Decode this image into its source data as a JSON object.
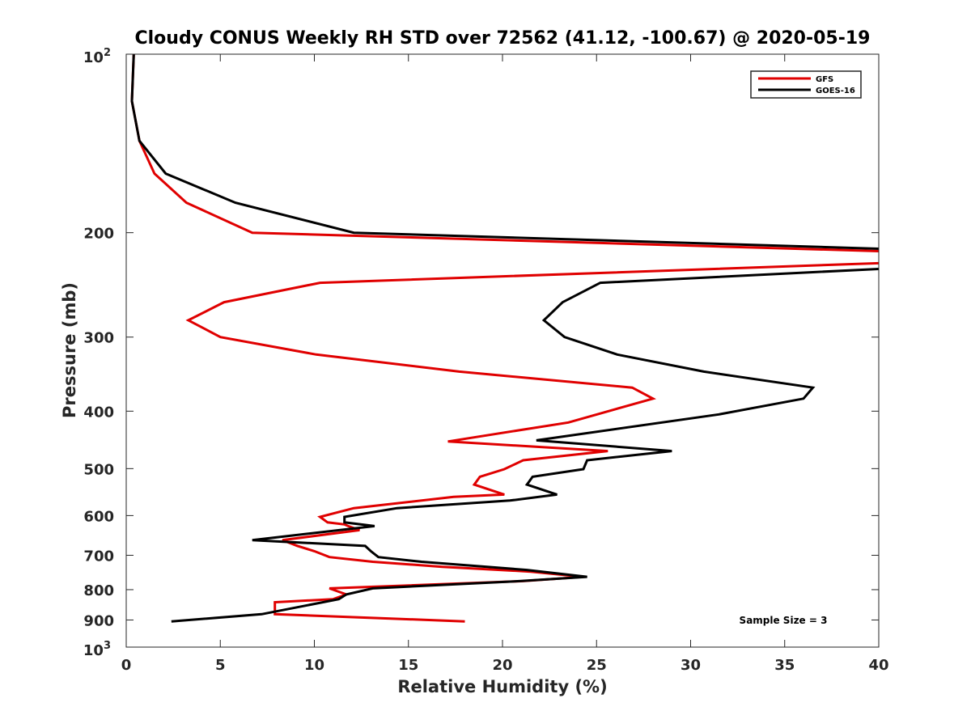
{
  "chart_data": {
    "type": "line",
    "title": "Cloudy CONUS Weekly RH STD over 72562 (41.12, -100.67) @ 2020-05-19",
    "xlabel": "Relative Humidity (%)",
    "ylabel": "Pressure (mb)",
    "xlim": [
      0,
      40
    ],
    "ylim": [
      100,
      1000
    ],
    "yscale": "log",
    "y_reversed": true,
    "grid": false,
    "legend_position": "top-right",
    "x_ticks": [
      {
        "value": 0,
        "label": "0"
      },
      {
        "value": 5,
        "label": "5"
      },
      {
        "value": 10,
        "label": "10"
      },
      {
        "value": 15,
        "label": "15"
      },
      {
        "value": 20,
        "label": "20"
      },
      {
        "value": 25,
        "label": "25"
      },
      {
        "value": 30,
        "label": "30"
      },
      {
        "value": 35,
        "label": "35"
      },
      {
        "value": 40,
        "label": "40"
      }
    ],
    "y_ticks": [
      {
        "value": 200,
        "label": "200"
      },
      {
        "value": 300,
        "label": "300"
      },
      {
        "value": 400,
        "label": "400"
      },
      {
        "value": 500,
        "label": "500"
      },
      {
        "value": 600,
        "label": "600"
      },
      {
        "value": 700,
        "label": "700"
      },
      {
        "value": 800,
        "label": "800"
      },
      {
        "value": 900,
        "label": "900"
      }
    ],
    "y_edge_labels": [
      {
        "value": 100,
        "base": "10",
        "exp": "2"
      },
      {
        "value": 1000,
        "base": "10",
        "exp": "3"
      }
    ],
    "annotation": "Sample Size = 3",
    "series": [
      {
        "name": "GFS",
        "color": "#e00000",
        "points": [
          [
            0.4,
            100
          ],
          [
            0.3,
            120
          ],
          [
            0.7,
            140
          ],
          [
            1.5,
            159
          ],
          [
            3.2,
            178
          ],
          [
            6.7,
            200
          ],
          [
            40.3,
            215
          ],
          [
            40.3,
            225
          ],
          [
            10.3,
            243
          ],
          [
            5.2,
            262
          ],
          [
            3.3,
            281
          ],
          [
            5.0,
            300
          ],
          [
            10.1,
            321
          ],
          [
            17.7,
            343
          ],
          [
            26.9,
            365
          ],
          [
            28.0,
            381
          ],
          [
            23.5,
            418
          ],
          [
            17.1,
            450
          ],
          [
            25.6,
            467
          ],
          [
            21.1,
            484
          ],
          [
            20.1,
            501
          ],
          [
            18.8,
            516
          ],
          [
            18.5,
            532
          ],
          [
            20.1,
            553
          ],
          [
            17.4,
            558
          ],
          [
            12.1,
            583
          ],
          [
            10.3,
            603
          ],
          [
            10.7,
            616
          ],
          [
            11.6,
            621
          ],
          [
            11.8,
            625
          ],
          [
            12.4,
            635
          ],
          [
            8.3,
            660
          ],
          [
            9.1,
            675
          ],
          [
            10.0,
            689
          ],
          [
            10.8,
            705
          ],
          [
            13.1,
            718
          ],
          [
            16.8,
            732
          ],
          [
            21.5,
            746
          ],
          [
            24.3,
            761
          ],
          [
            21.1,
            774
          ],
          [
            10.8,
            796
          ],
          [
            11.7,
            815
          ],
          [
            11.0,
            830
          ],
          [
            7.9,
            840
          ],
          [
            7.9,
            880
          ],
          [
            18.0,
            905
          ]
        ]
      },
      {
        "name": "GOES-16",
        "color": "#000000",
        "points": [
          [
            0.4,
            100
          ],
          [
            0.3,
            120
          ],
          [
            0.7,
            140
          ],
          [
            2.1,
            159
          ],
          [
            5.8,
            178
          ],
          [
            12.1,
            200
          ],
          [
            40.3,
            213
          ],
          [
            40.3,
            230
          ],
          [
            25.2,
            243
          ],
          [
            23.2,
            262
          ],
          [
            22.2,
            281
          ],
          [
            23.3,
            300
          ],
          [
            26.1,
            321
          ],
          [
            30.7,
            343
          ],
          [
            36.5,
            365
          ],
          [
            36.0,
            381
          ],
          [
            31.5,
            405
          ],
          [
            21.8,
            448
          ],
          [
            29.0,
            467
          ],
          [
            24.5,
            484
          ],
          [
            24.3,
            501
          ],
          [
            21.6,
            516
          ],
          [
            21.3,
            532
          ],
          [
            22.9,
            553
          ],
          [
            20.4,
            566
          ],
          [
            14.4,
            583
          ],
          [
            11.6,
            603
          ],
          [
            11.6,
            616
          ],
          [
            13.2,
            625
          ],
          [
            6.7,
            660
          ],
          [
            12.7,
            675
          ],
          [
            13.0,
            689
          ],
          [
            13.4,
            705
          ],
          [
            15.7,
            718
          ],
          [
            21.3,
            741
          ],
          [
            24.5,
            761
          ],
          [
            20.9,
            774
          ],
          [
            13.1,
            796
          ],
          [
            11.7,
            815
          ],
          [
            11.3,
            830
          ],
          [
            7.2,
            880
          ],
          [
            2.4,
            905
          ]
        ]
      }
    ]
  }
}
